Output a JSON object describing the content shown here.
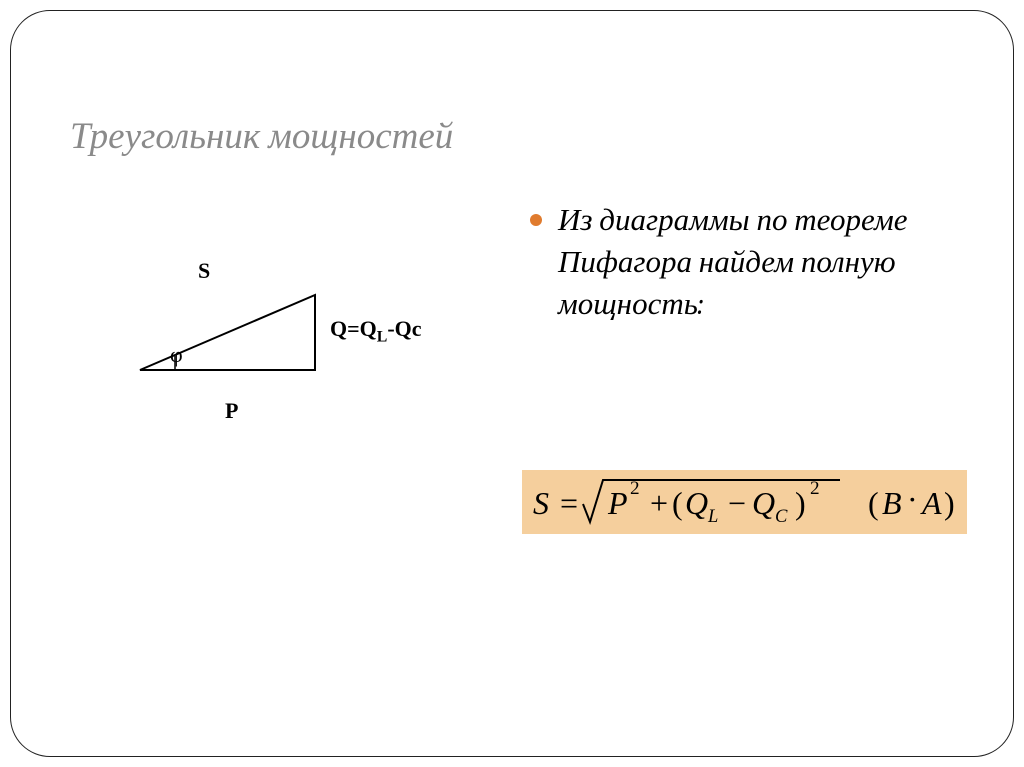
{
  "title": {
    "text": "Треугольник мощностей",
    "color": "#8a8a8a",
    "fontsize": 37
  },
  "bullet": {
    "text": "Из диаграммы по теореме Пифагора найдем полную мощность:",
    "dot_color": "#e07b2e",
    "fontsize": 31,
    "color": "#000000",
    "line_height": 1.35
  },
  "diagram": {
    "type": "right-triangle",
    "stroke_color": "#000000",
    "stroke_width": 2,
    "points": {
      "A": [
        20,
        130
      ],
      "B": [
        195,
        130
      ],
      "C": [
        195,
        55
      ]
    },
    "angle_marker_x": 55,
    "labels": {
      "S": "S",
      "Q": "Q=Q",
      "Q_sub": "L",
      "Q_tail": "-Qc",
      "P": "P",
      "phi": "φ"
    },
    "label_fontsize": 22
  },
  "formula": {
    "background": "#f5cf9d",
    "color": "#000000",
    "fontsize": 32,
    "parts": {
      "S": "S",
      "eq": "=",
      "P": "P",
      "sq1": "2",
      "plus": "+",
      "lp": "(",
      "QL": "Q",
      "Lsub": "L",
      "minus": "−",
      "QC": "Q",
      "Csub": "C",
      "rp": ")",
      "sq2": "2",
      "unit_l": "(",
      "B": "B",
      "dot": "·",
      "A": "A",
      "unit_r": ")"
    }
  }
}
